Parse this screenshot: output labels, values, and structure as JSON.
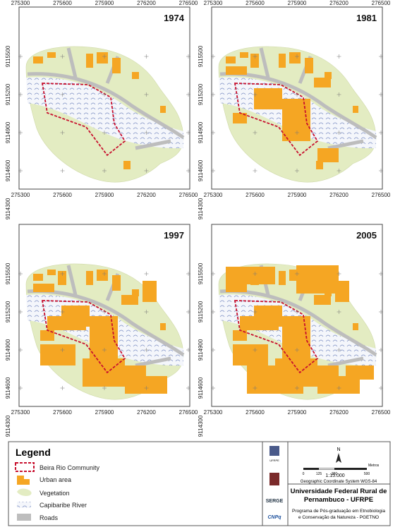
{
  "panels": [
    {
      "year": "1974"
    },
    {
      "year": "1981"
    },
    {
      "year": "1997"
    },
    {
      "year": "2005"
    }
  ],
  "xticks": [
    275300,
    275600,
    275900,
    276200,
    276500
  ],
  "yticks": [
    9115500,
    9115200,
    9114900,
    9114600,
    9114300
  ],
  "legend": {
    "title": "Legend",
    "items": [
      "Beira Rio Community",
      "Urban area",
      "Vegetation",
      "Capibaribe River",
      "Roads"
    ]
  },
  "logos": [
    "UFRPE",
    "SERGE",
    "CNPq"
  ],
  "info": {
    "north": "N",
    "scale_ticks": [
      "0",
      "125",
      "250",
      "500"
    ],
    "scale_unit": "Metros",
    "scale": "1:15.000",
    "crs": "Geographic Coordinate System WGS-84",
    "university": [
      "Universidade Federal Rural de",
      "Pernambuco - UFRPE"
    ],
    "program": [
      "Programa de Pós-graduação em Etnobiologia",
      "e Conservação da Natureza - PGETNO"
    ]
  }
}
